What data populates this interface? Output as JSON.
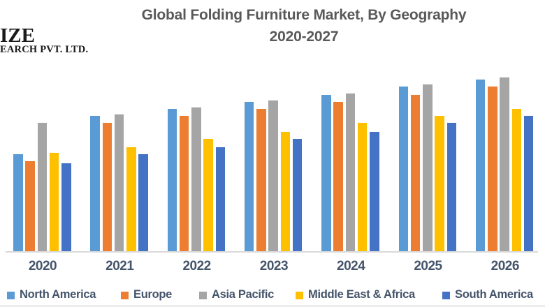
{
  "logo": {
    "line1": "IZE",
    "line2": "EARCH PVT. LTD."
  },
  "title": {
    "line1": "Global Folding Furniture Market, By Geography",
    "line2": "2020-2027"
  },
  "colors": {
    "north_america": "#5B9BD5",
    "europe": "#ED7D31",
    "asia_pacific": "#A5A5A5",
    "middle_east_africa": "#FFC000",
    "south_america": "#4472C4",
    "axis_line": "#D9D9D9",
    "title_text": "#595959",
    "label_text": "#44546A"
  },
  "chart_data": {
    "type": "bar",
    "title": "Global Folding Furniture Market, By Geography 2020-2027",
    "categories": [
      "2020",
      "2021",
      "2022",
      "2023",
      "2024",
      "2025",
      "2026"
    ],
    "series": [
      {
        "name": "North America",
        "color": "#5B9BD5",
        "values": [
          56,
          78,
          82,
          86,
          90,
          95,
          99
        ]
      },
      {
        "name": "Europe",
        "color": "#ED7D31",
        "values": [
          52,
          74,
          78,
          82,
          86,
          90,
          95
        ]
      },
      {
        "name": "Asia Pacific",
        "color": "#A5A5A5",
        "values": [
          74,
          79,
          83,
          87,
          91,
          96,
          100
        ]
      },
      {
        "name": "Middle East & Africa",
        "color": "#FFC000",
        "values": [
          57,
          60,
          65,
          69,
          74,
          78,
          82
        ]
      },
      {
        "name": "South America",
        "color": "#4472C4",
        "values": [
          51,
          56,
          60,
          65,
          69,
          74,
          78
        ]
      }
    ],
    "xlabel": "",
    "ylabel": "",
    "ylim": [
      0,
      100
    ],
    "units": "relative scale (no y-axis values shown in image)",
    "y_axis_visible": false,
    "gridlines": false,
    "legend_position": "bottom"
  }
}
